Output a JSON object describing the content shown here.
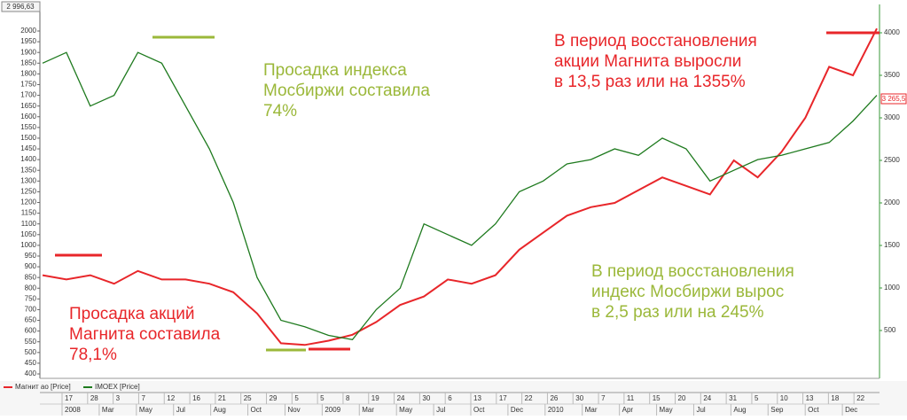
{
  "chart_data": {
    "type": "line",
    "x": [
      "2008-01",
      "2008-02",
      "2008-03",
      "2008-04",
      "2008-05",
      "2008-06",
      "2008-07",
      "2008-08",
      "2008-09",
      "2008-10",
      "2008-11",
      "2008-12",
      "2009-01",
      "2009-02",
      "2009-03",
      "2009-04",
      "2009-05",
      "2009-06",
      "2009-07",
      "2009-08",
      "2009-09",
      "2009-10",
      "2009-11",
      "2009-12",
      "2010-01",
      "2010-02",
      "2010-03",
      "2010-04",
      "2010-05",
      "2010-06",
      "2010-07",
      "2010-08",
      "2010-09",
      "2010-10",
      "2010-11",
      "2010-12"
    ],
    "series": [
      {
        "name": "Магнит ао [Price]",
        "color": "#e8262a",
        "axis": "y2",
        "values": [
          1150,
          1100,
          1150,
          1050,
          1200,
          1100,
          1100,
          1050,
          950,
          700,
          350,
          330,
          380,
          450,
          600,
          800,
          900,
          1100,
          1050,
          1150,
          1450,
          1650,
          1850,
          1950,
          2000,
          2150,
          2300,
          2200,
          2100,
          2500,
          2300,
          2600,
          3000,
          3600,
          3500,
          4050
        ]
      },
      {
        "name": "IMOEX [Price]",
        "color": "#1e7a1e",
        "values": [
          1850,
          1900,
          1650,
          1700,
          1900,
          1850,
          1650,
          1450,
          1200,
          850,
          650,
          620,
          580,
          560,
          700,
          800,
          1100,
          1050,
          1000,
          1100,
          1250,
          1300,
          1380,
          1400,
          1450,
          1420,
          1500,
          1450,
          1300,
          1350,
          1400,
          1420,
          1450,
          1480,
          1580,
          1700
        ]
      }
    ],
    "ylim": [
      400,
      2000
    ],
    "yticks": [
      400,
      450,
      500,
      550,
      600,
      650,
      700,
      750,
      800,
      850,
      900,
      950,
      1000,
      1050,
      1100,
      1150,
      1200,
      1250,
      1300,
      1350,
      1400,
      1450,
      1500,
      1550,
      1600,
      1650,
      1700,
      1750,
      1800,
      1850,
      1900,
      1950,
      2000
    ],
    "y2lim": [
      0,
      4000
    ],
    "y2ticks": [
      500,
      1000,
      1500,
      2000,
      2500,
      3000,
      3500,
      4000
    ],
    "y_top_label": "2 996,63",
    "y2_last_label": "3 265,5",
    "x_day_labels": [
      "17",
      "28",
      "3",
      "7",
      "12",
      "16",
      "21",
      "25",
      "29",
      "5",
      "5",
      "8",
      "19",
      "24",
      "30",
      "6",
      "13",
      "17",
      "22",
      "26",
      "30",
      "7",
      "11",
      "15",
      "20",
      "24",
      "31",
      "5",
      "10",
      "13",
      "18",
      "22"
    ],
    "x_month_labels": [
      "2008",
      "Mar",
      "May",
      "Jul",
      "Aug",
      "Oct",
      "Nov",
      "2009",
      "Mar",
      "May",
      "Jul",
      "Oct",
      "Dec",
      "2010",
      "Mar",
      "Apr",
      "May",
      "Jul",
      "Aug",
      "Sep",
      "Oct",
      "Dec"
    ],
    "annotations": [
      {
        "lines": [
          "Просадка индекса",
          "Мосбиржи составила",
          "74%"
        ],
        "color": "#9bb83a"
      },
      {
        "lines": [
          "В период восстановления",
          "акции Магнита выросли",
          "в 13,5 раз или на 1355%"
        ],
        "color": "#e8262a"
      },
      {
        "lines": [
          "Просадка акций",
          "Магнита составила",
          "78,1%"
        ],
        "color": "#e8262a"
      },
      {
        "lines": [
          "В период восстановления",
          "индекс Мосбиржи вырос",
          "в 2,5 раз или на 245%"
        ],
        "color": "#9bb83a"
      }
    ]
  }
}
